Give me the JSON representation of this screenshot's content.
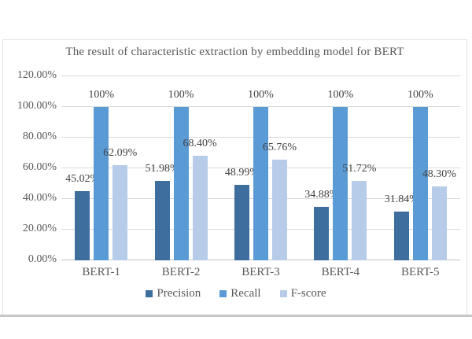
{
  "chart_data": {
    "type": "bar",
    "title": "The result of characteristic extraction by embedding model for BERT",
    "categories": [
      "BERT-1",
      "BERT-2",
      "BERT-3",
      "BERT-4",
      "BERT-5"
    ],
    "series": [
      {
        "name": "Precision",
        "color": "#3E6E9E",
        "values": [
          45.02,
          51.98,
          48.99,
          34.88,
          31.84
        ],
        "data_labels": [
          "45.02%",
          "51.98%",
          "48.99%",
          "34.88%",
          "31.84%"
        ]
      },
      {
        "name": "Recall",
        "color": "#5B9BD5",
        "values": [
          100,
          100,
          100,
          100,
          100
        ],
        "data_labels": [
          "100%",
          "100%",
          "100%",
          "100%",
          "100%"
        ]
      },
      {
        "name": "F-score",
        "color": "#B7CCE9",
        "values": [
          62.09,
          68.4,
          65.76,
          51.72,
          48.3
        ],
        "data_labels": [
          "62.09%",
          "68.40%",
          "65.76%",
          "51.72%",
          "48.30%"
        ]
      }
    ],
    "y_axis": {
      "min": 0,
      "max": 120,
      "tick_labels": [
        "120.00%",
        "100.00%",
        "80.00%",
        "60.00%",
        "40.00%",
        "20.00%",
        "0.00%"
      ]
    },
    "legend": {
      "position": "bottom",
      "entries": [
        "Precision",
        "Recall",
        "F-score"
      ]
    },
    "grid": true,
    "gridline_color": "#d9d9d9",
    "axis_line_color": "#bfbfbf",
    "label_color": "#424242"
  }
}
